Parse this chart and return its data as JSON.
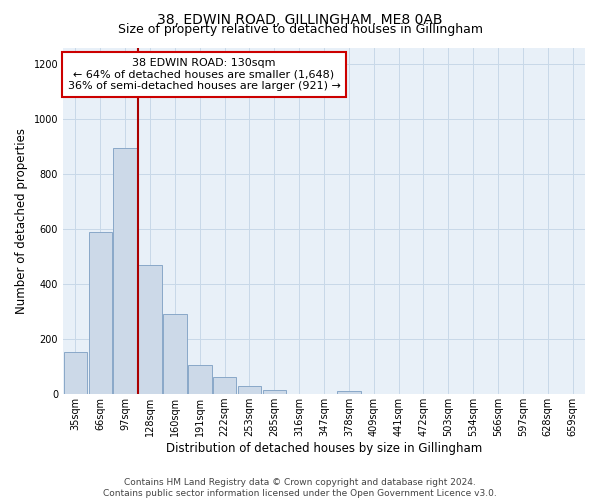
{
  "title": "38, EDWIN ROAD, GILLINGHAM, ME8 0AB",
  "subtitle": "Size of property relative to detached houses in Gillingham",
  "xlabel": "Distribution of detached houses by size in Gillingham",
  "ylabel": "Number of detached properties",
  "bar_labels": [
    "35sqm",
    "66sqm",
    "97sqm",
    "128sqm",
    "160sqm",
    "191sqm",
    "222sqm",
    "253sqm",
    "285sqm",
    "316sqm",
    "347sqm",
    "378sqm",
    "409sqm",
    "441sqm",
    "472sqm",
    "503sqm",
    "534sqm",
    "566sqm",
    "597sqm",
    "628sqm",
    "659sqm"
  ],
  "bar_values": [
    155,
    590,
    895,
    470,
    290,
    105,
    63,
    28,
    15,
    0,
    0,
    13,
    0,
    0,
    0,
    0,
    0,
    0,
    0,
    0,
    0
  ],
  "bar_color": "#ccd9e8",
  "bar_edge_color": "#89a8c8",
  "red_line_x": 2.5,
  "annotation_text_line1": "38 EDWIN ROAD: 130sqm",
  "annotation_text_line2": "← 64% of detached houses are smaller (1,648)",
  "annotation_text_line3": "36% of semi-detached houses are larger (921) →",
  "annotation_box_color": "#ffffff",
  "annotation_box_edge_color": "#cc0000",
  "red_line_color": "#aa0000",
  "ylim": [
    0,
    1260
  ],
  "yticks": [
    0,
    200,
    400,
    600,
    800,
    1000,
    1200
  ],
  "footer_line1": "Contains HM Land Registry data © Crown copyright and database right 2024.",
  "footer_line2": "Contains public sector information licensed under the Open Government Licence v3.0.",
  "bg_color": "#ffffff",
  "grid_color": "#c8d8e8",
  "title_fontsize": 10,
  "subtitle_fontsize": 9,
  "xlabel_fontsize": 8.5,
  "ylabel_fontsize": 8.5,
  "tick_fontsize": 7,
  "annotation_fontsize": 8,
  "footer_fontsize": 6.5
}
